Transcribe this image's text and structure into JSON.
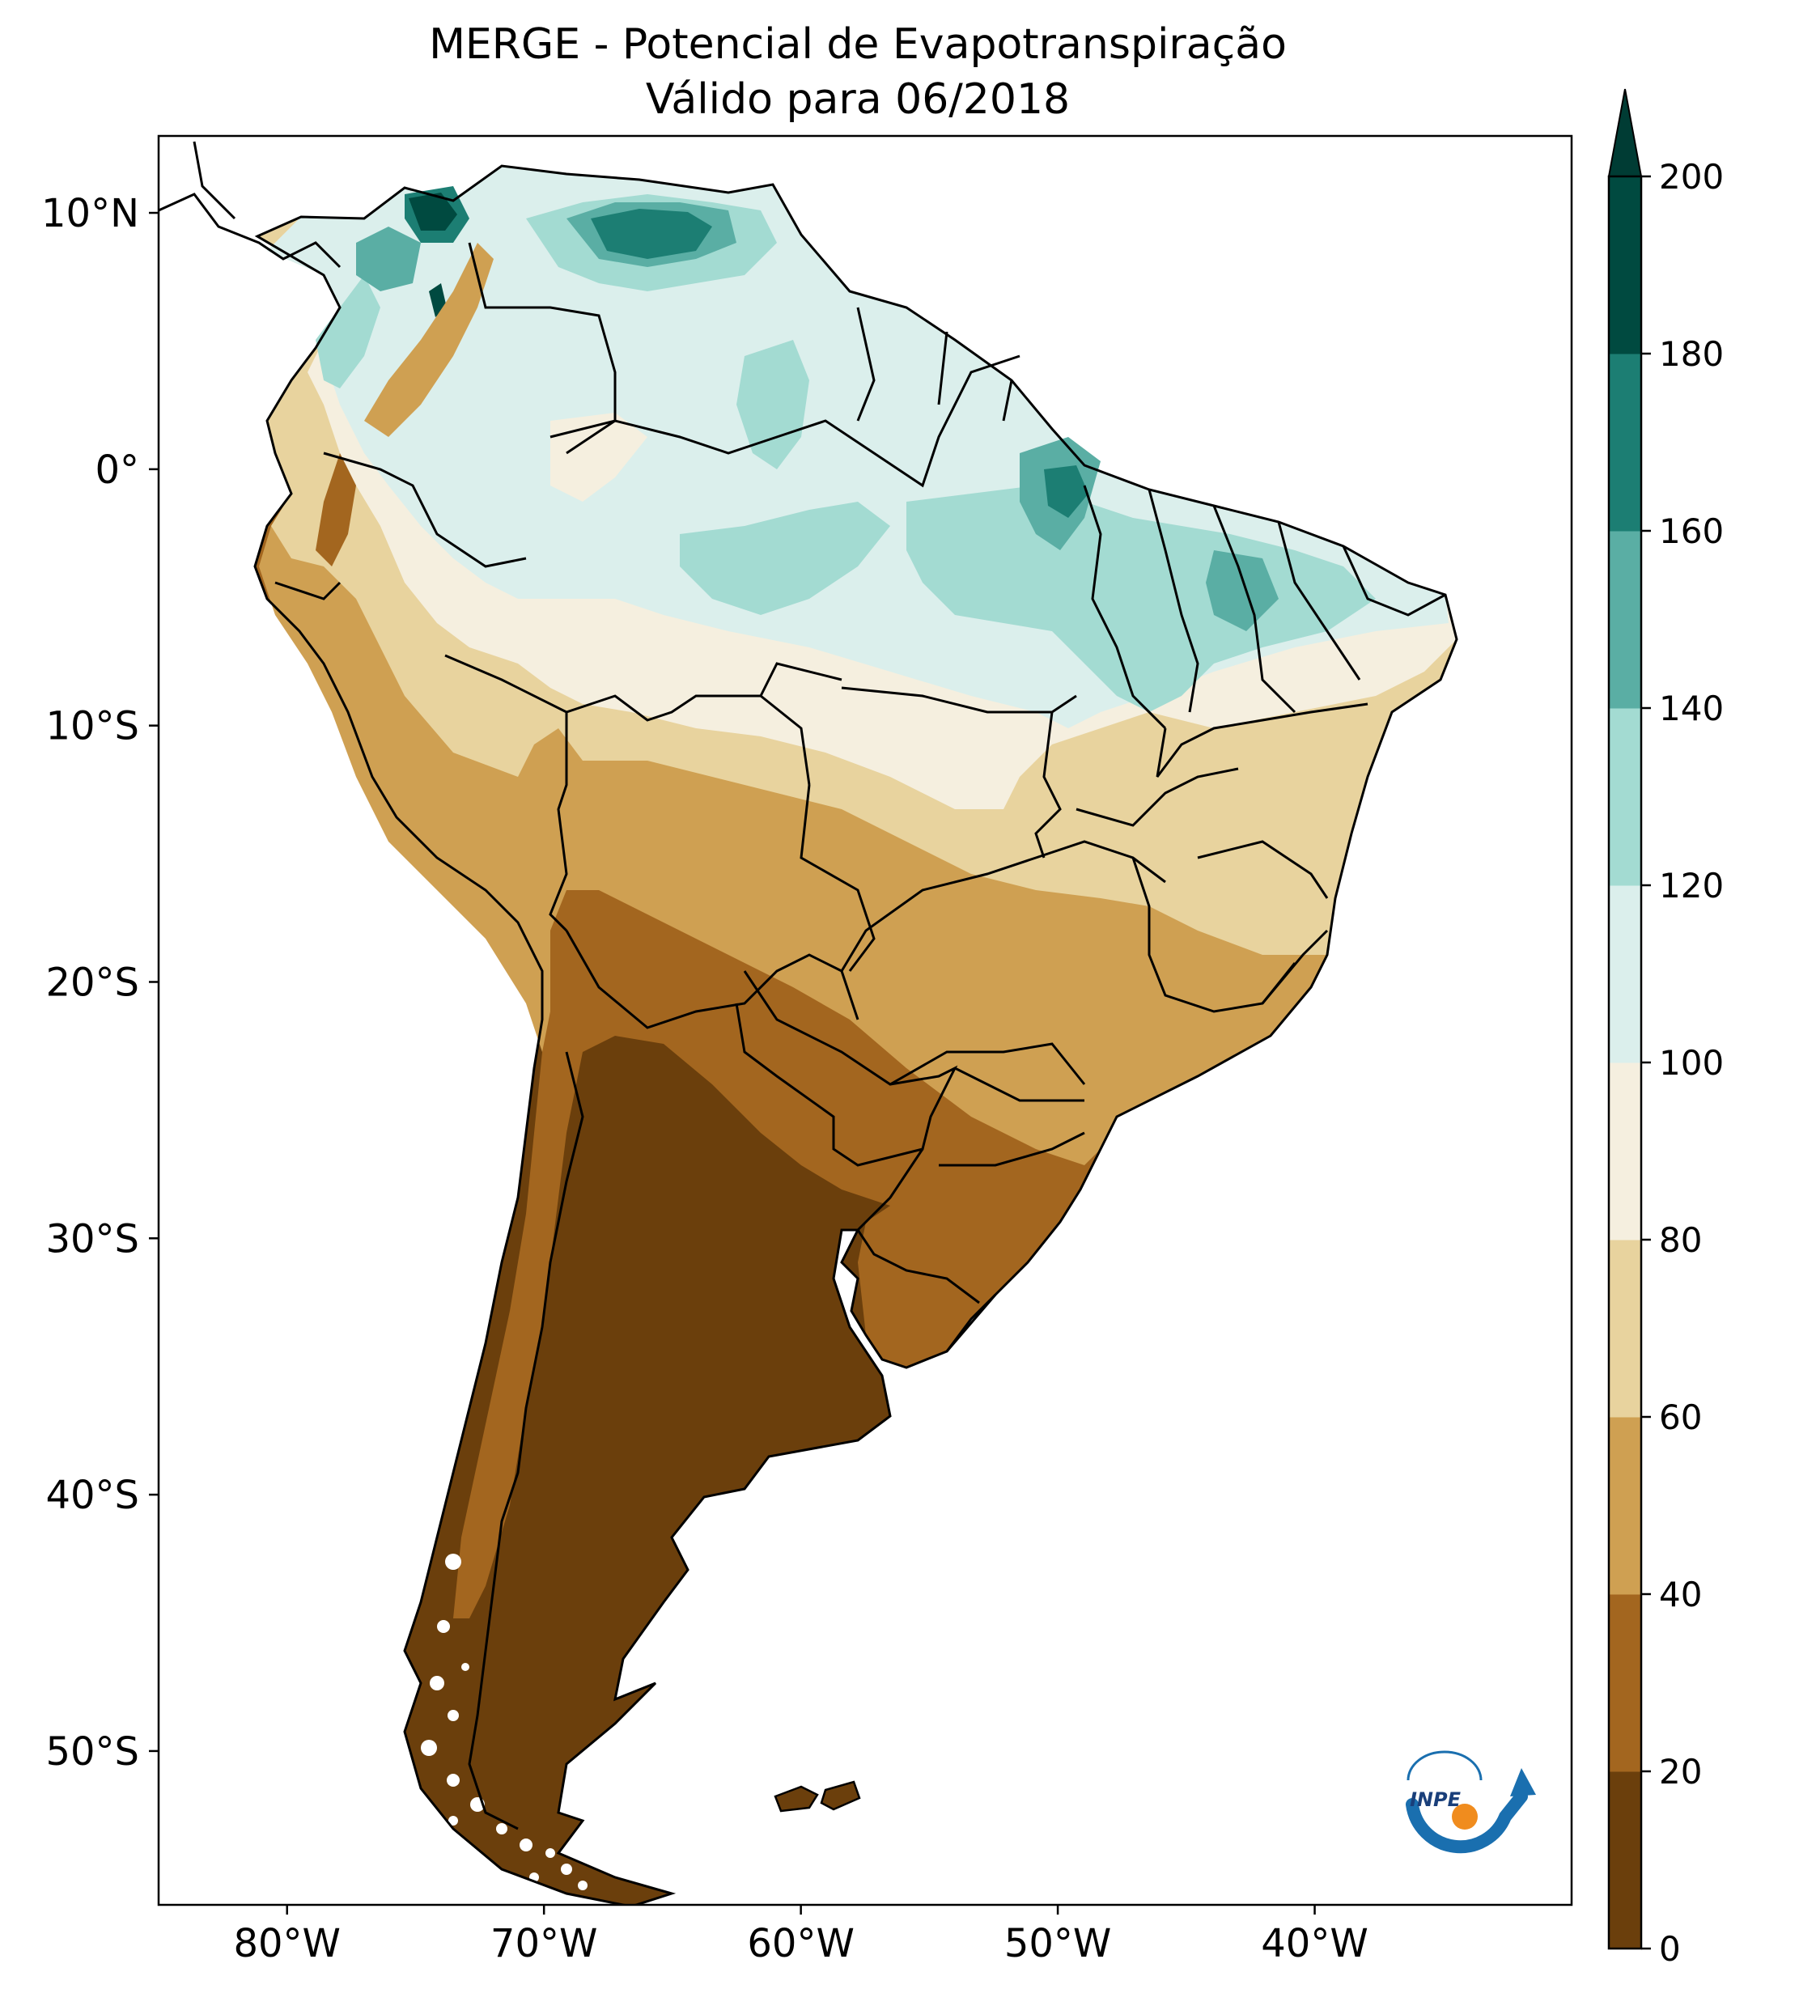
{
  "title": "MERGE - Potencial de Evapotranspiração",
  "subtitle": "Válido para 06/2018",
  "map": {
    "lon_range": [
      -85,
      -30
    ],
    "lat_range": [
      -56,
      13
    ],
    "x_ticks": [
      {
        "lon": -80,
        "label": "80°W"
      },
      {
        "lon": -70,
        "label": "70°W"
      },
      {
        "lon": -60,
        "label": "60°W"
      },
      {
        "lon": -50,
        "label": "50°W"
      },
      {
        "lon": -40,
        "label": "40°W"
      }
    ],
    "y_ticks": [
      {
        "lat": 10,
        "label": "10°N"
      },
      {
        "lat": 0,
        "label": "0°"
      },
      {
        "lat": -10,
        "label": "10°S"
      },
      {
        "lat": -20,
        "label": "20°S"
      },
      {
        "lat": -30,
        "label": "30°S"
      },
      {
        "lat": -40,
        "label": "40°S"
      },
      {
        "lat": -50,
        "label": "50°S"
      }
    ]
  },
  "colorbar": {
    "levels": [
      0,
      20,
      40,
      60,
      80,
      100,
      120,
      140,
      160,
      180,
      200
    ],
    "labels": [
      "0",
      "20",
      "40",
      "60",
      "80",
      "100",
      "120",
      "140",
      "160",
      "180",
      "200"
    ],
    "colors": [
      "#6b3f0c",
      "#a3661f",
      "#cfa052",
      "#e8d39e",
      "#f5efdf",
      "#dbefec",
      "#a3dbd2",
      "#5aaea4",
      "#1c7e73",
      "#004a40"
    ],
    "extend_color": "#003c34",
    "extend": "max"
  },
  "logo": {
    "text": "INPE"
  }
}
